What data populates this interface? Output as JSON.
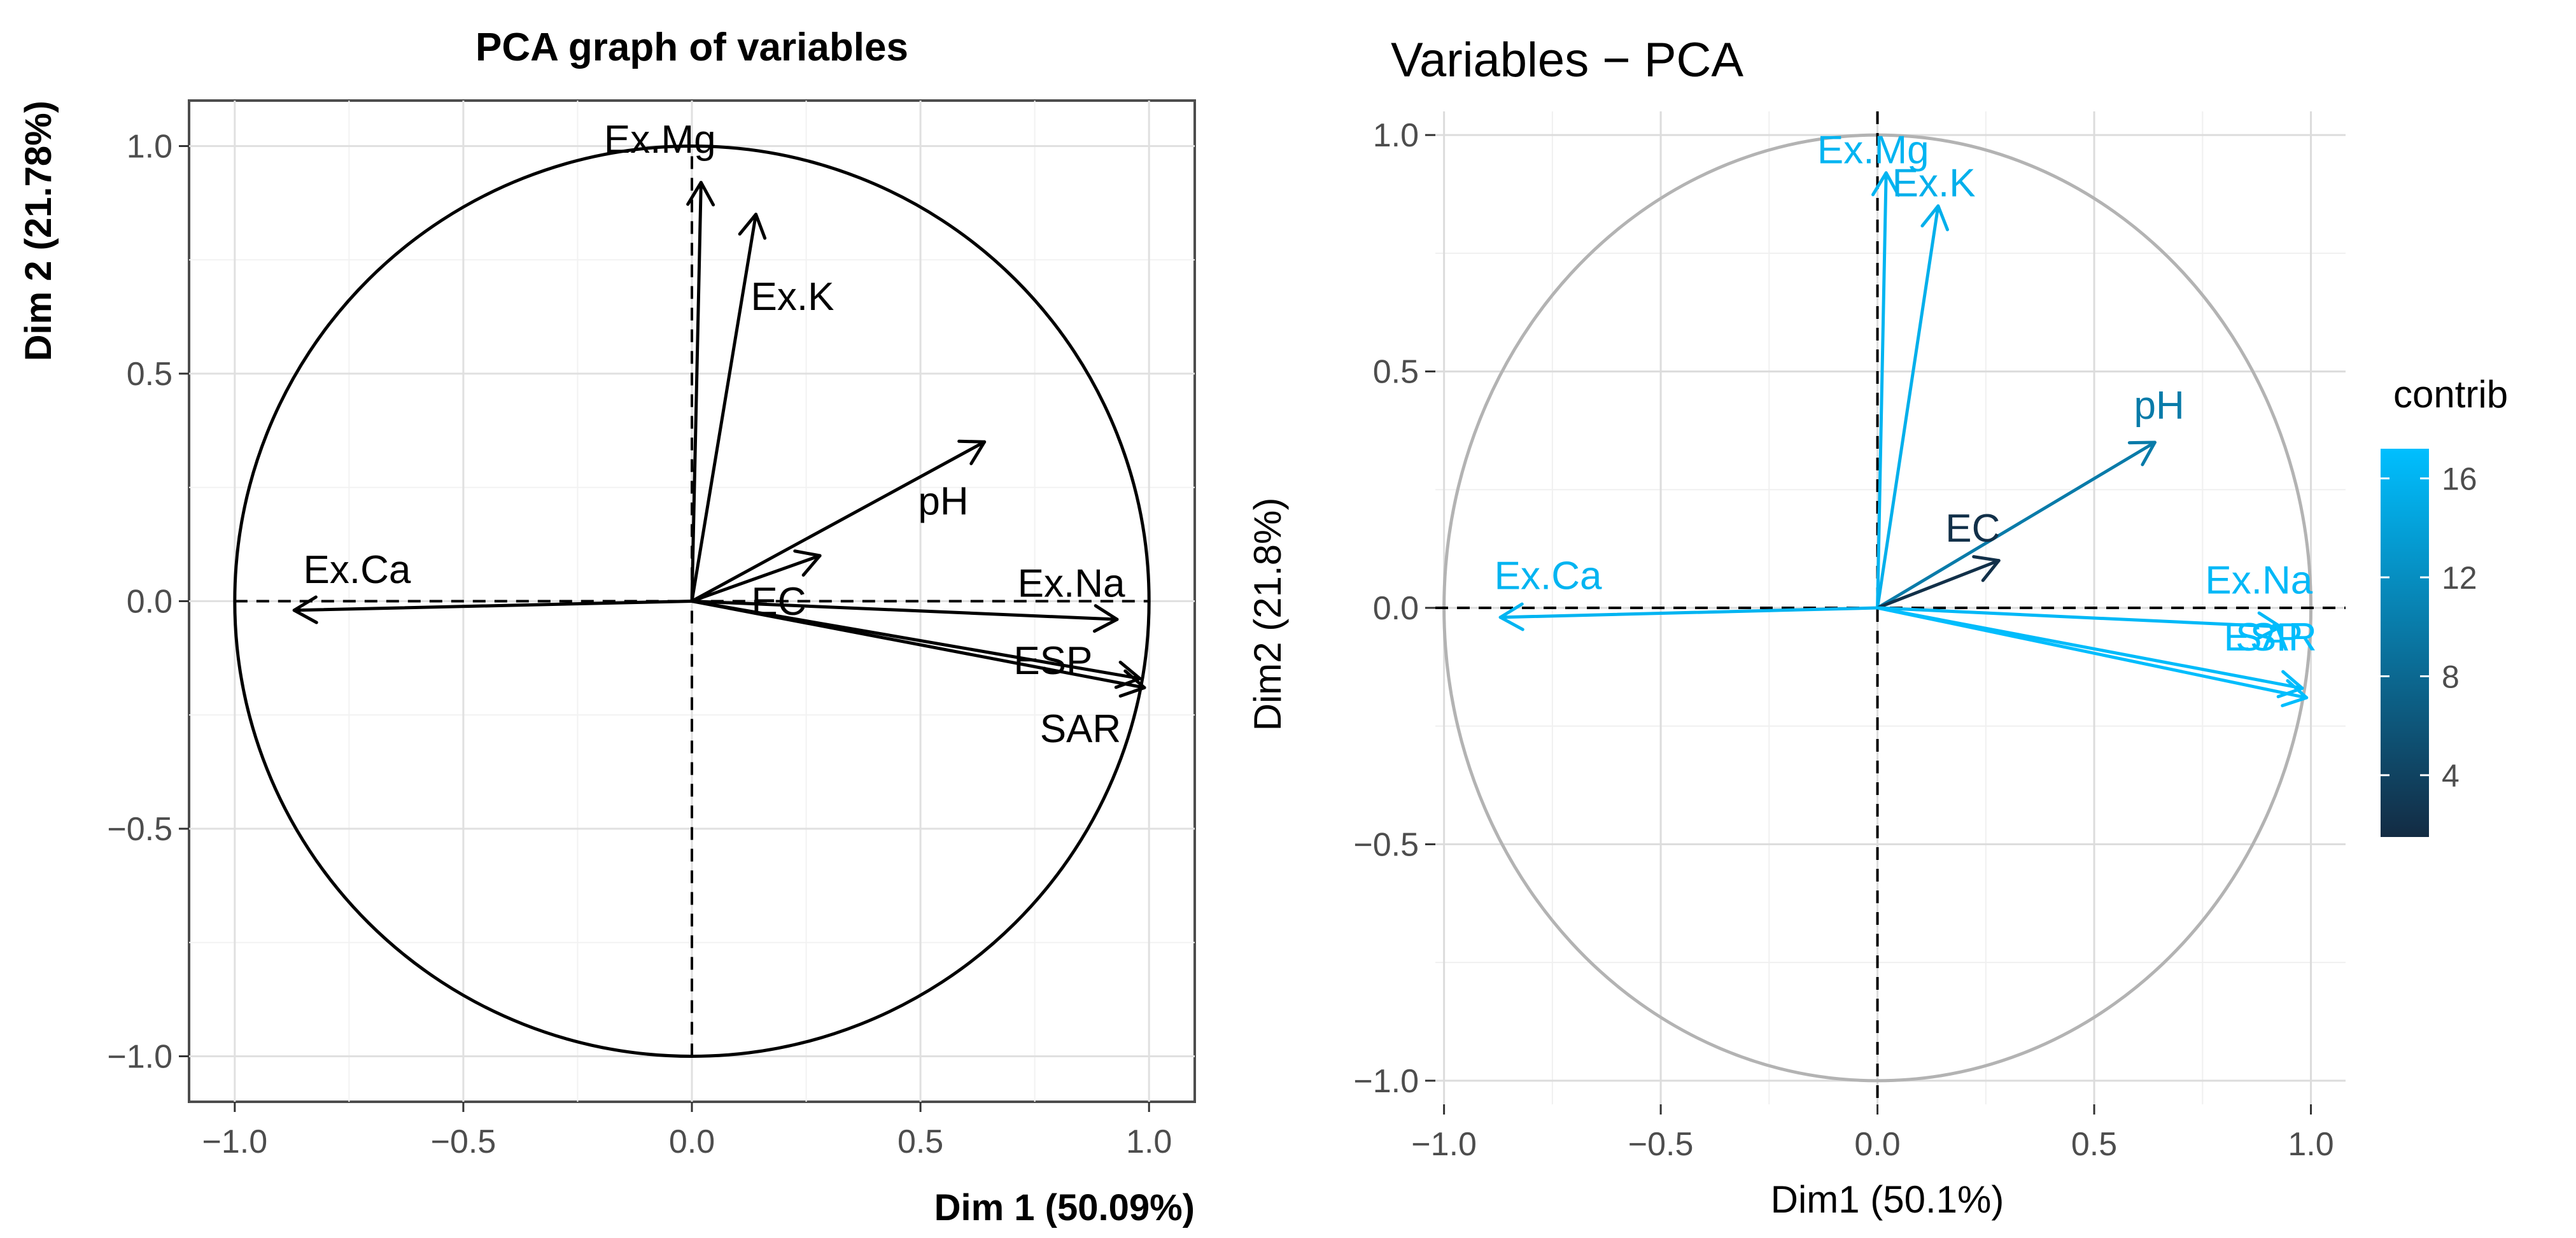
{
  "chart_data": [
    {
      "type": "pca-variable-correlation-circle",
      "title": "PCA graph of variables",
      "xlabel": "Dim 1 (50.09%)",
      "ylabel": "Dim 2 (21.78%)",
      "xlim": [
        -1.1,
        1.1
      ],
      "ylim": [
        -1.1,
        1.1
      ],
      "ticks": [
        -1.0,
        -0.5,
        0.0,
        0.5,
        1.0
      ],
      "tick_labels": [
        "−1.0",
        "−0.5",
        "0.0",
        "0.5",
        "1.0"
      ],
      "grid": true,
      "variables": [
        {
          "name": "Ex.Mg",
          "x": 0.02,
          "y": 0.92
        },
        {
          "name": "Ex.K",
          "x": 0.14,
          "y": 0.85
        },
        {
          "name": "pH",
          "x": 0.64,
          "y": 0.35
        },
        {
          "name": "EC",
          "x": 0.28,
          "y": 0.1
        },
        {
          "name": "Ex.Ca",
          "x": -0.87,
          "y": -0.02
        },
        {
          "name": "Ex.Na",
          "x": 0.93,
          "y": -0.04
        },
        {
          "name": "ESP",
          "x": 0.98,
          "y": -0.17
        },
        {
          "name": "SAR",
          "x": 0.99,
          "y": -0.19
        }
      ]
    },
    {
      "type": "pca-variable-correlation-circle",
      "title": "Variables − PCA",
      "xlabel": "Dim1 (50.1%)",
      "ylabel": "Dim2 (21.8%)",
      "xlim": [
        -1.02,
        1.08
      ],
      "ylim": [
        -1.05,
        1.05
      ],
      "ticks": [
        -1.0,
        -0.5,
        0.0,
        0.5,
        1.0
      ],
      "tick_labels": [
        "−1.0",
        "−0.5",
        "0.0",
        "0.5",
        "1.0"
      ],
      "grid": true,
      "color_by": "contrib",
      "variables": [
        {
          "name": "Ex.Mg",
          "x": 0.02,
          "y": 0.92,
          "contrib": 16.0
        },
        {
          "name": "Ex.K",
          "x": 0.14,
          "y": 0.85,
          "contrib": 15.5
        },
        {
          "name": "pH",
          "x": 0.64,
          "y": 0.35,
          "contrib": 10.0
        },
        {
          "name": "EC",
          "x": 0.28,
          "y": 0.1,
          "contrib": 2.0
        },
        {
          "name": "Ex.Ca",
          "x": -0.87,
          "y": -0.02,
          "contrib": 16.0
        },
        {
          "name": "Ex.Na",
          "x": 0.93,
          "y": -0.04,
          "contrib": 16.5
        },
        {
          "name": "ESP",
          "x": 0.98,
          "y": -0.17,
          "contrib": 16.8
        },
        {
          "name": "SAR",
          "x": 0.99,
          "y": -0.19,
          "contrib": 17.0
        }
      ],
      "legend": {
        "title": "contrib",
        "placement": "right",
        "ticks": [
          4,
          8,
          12,
          16
        ],
        "range": [
          1.5,
          17.2
        ],
        "colors": {
          "low": "#132B43",
          "high": "#00BFFF"
        }
      }
    }
  ]
}
